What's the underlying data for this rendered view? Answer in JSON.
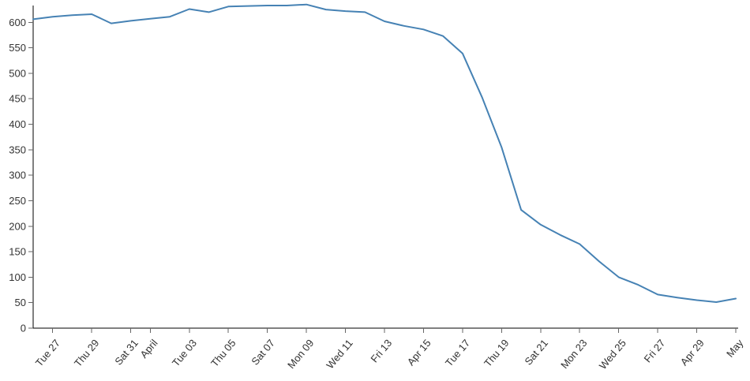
{
  "chart": {
    "background": "#ffffff",
    "line_color": "#4682b4",
    "axis_color": "#000000",
    "tick_color": "#666666",
    "label_color": "#333333"
  },
  "chart_data": {
    "type": "line",
    "title": "",
    "xlabel": "",
    "ylabel": "",
    "grid": false,
    "legend": false,
    "ylim": [
      0,
      600
    ],
    "y_ticks": [
      0,
      50,
      100,
      150,
      200,
      250,
      300,
      350,
      400,
      450,
      500,
      550,
      600
    ],
    "x": [
      "Mar 26",
      "Mar 27",
      "Mar 28",
      "Mar 29",
      "Mar 30",
      "Mar 31",
      "Apr 01",
      "Apr 02",
      "Apr 03",
      "Apr 04",
      "Apr 05",
      "Apr 06",
      "Apr 07",
      "Apr 08",
      "Apr 09",
      "Apr 10",
      "Apr 11",
      "Apr 12",
      "Apr 13",
      "Apr 14",
      "Apr 15",
      "Apr 16",
      "Apr 17",
      "Apr 18",
      "Apr 19",
      "Apr 20",
      "Apr 21",
      "Apr 22",
      "Apr 23",
      "Apr 24",
      "Apr 25",
      "Apr 26",
      "Apr 27",
      "Apr 28",
      "Apr 29",
      "Apr 30",
      "May 01"
    ],
    "values": [
      606,
      611,
      614,
      616,
      598,
      603,
      607,
      611,
      626,
      620,
      631,
      632,
      633,
      633,
      635,
      625,
      622,
      620,
      602,
      593,
      586,
      573,
      539,
      453,
      355,
      232,
      203,
      183,
      165,
      131,
      100,
      85,
      66,
      60,
      55,
      51,
      58
    ],
    "x_ticks": [
      {
        "index": 1,
        "label": "Tue 27"
      },
      {
        "index": 3,
        "label": "Thu 29"
      },
      {
        "index": 5,
        "label": "Sat 31"
      },
      {
        "index": 6,
        "label": "April"
      },
      {
        "index": 8,
        "label": "Tue 03"
      },
      {
        "index": 10,
        "label": "Thu 05"
      },
      {
        "index": 12,
        "label": "Sat 07"
      },
      {
        "index": 14,
        "label": "Mon 09"
      },
      {
        "index": 16,
        "label": "Wed 11"
      },
      {
        "index": 18,
        "label": "Fri 13"
      },
      {
        "index": 20,
        "label": "Apr 15"
      },
      {
        "index": 22,
        "label": "Tue 17"
      },
      {
        "index": 24,
        "label": "Thu 19"
      },
      {
        "index": 26,
        "label": "Sat 21"
      },
      {
        "index": 28,
        "label": "Mon 23"
      },
      {
        "index": 30,
        "label": "Wed 25"
      },
      {
        "index": 32,
        "label": "Fri 27"
      },
      {
        "index": 34,
        "label": "Apr 29"
      },
      {
        "index": 36,
        "label": "May"
      }
    ]
  }
}
